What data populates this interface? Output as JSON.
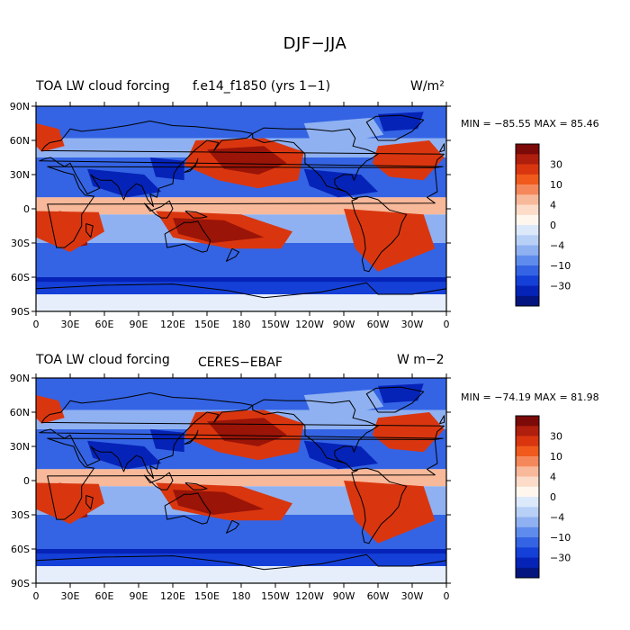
{
  "title": "DJF−JJA",
  "panels": [
    {
      "left_title": "TOA LW cloud forcing",
      "center_title": "f.e14_f1850 (yrs 1−1)",
      "center_title_display": "f.e14_f1850 (yrs 1−1)",
      "units": "W/m²",
      "min_label": "MIN =",
      "min": "−85.55",
      "max_label": "MAX =",
      "max": "85.46"
    },
    {
      "left_title": "TOA LW cloud forcing",
      "center_title": "CERES−EBAF",
      "units": "W m−2",
      "min_label": "MIN =",
      "min": "−74.19",
      "max_label": "MAX =",
      "max": "81.98"
    }
  ],
  "lat_ticks": [
    "90N",
    "60N",
    "30N",
    "0",
    "30S",
    "60S",
    "90S"
  ],
  "lon_ticks": [
    "0",
    "30E",
    "60E",
    "90E",
    "120E",
    "150E",
    "180",
    "150W",
    "120W",
    "90W",
    "60W",
    "30W",
    "0"
  ],
  "colorbar": {
    "labels": [
      "30",
      "10",
      "4",
      "0",
      "−4",
      "−10",
      "−30"
    ],
    "colors": [
      "#7b0a08",
      "#b01e0d",
      "#d9360f",
      "#f05a1c",
      "#f5885a",
      "#f8b89a",
      "#fcdcc8",
      "#fff7ee",
      "#dce9fb",
      "#b8d0f6",
      "#8fb1f1",
      "#5f8cec",
      "#3464e4",
      "#1540d8",
      "#0623b8",
      "#041580"
    ]
  },
  "map_colors": {
    "deep_red": "#9b1408",
    "red": "#d9360f",
    "orange": "#f05a1c",
    "light": "#f8b89a",
    "pale": "#e6eefc",
    "light_blue": "#8fb1f1",
    "blue": "#3464e4",
    "deep_blue": "#1540d8",
    "navy": "#0623b8"
  }
}
